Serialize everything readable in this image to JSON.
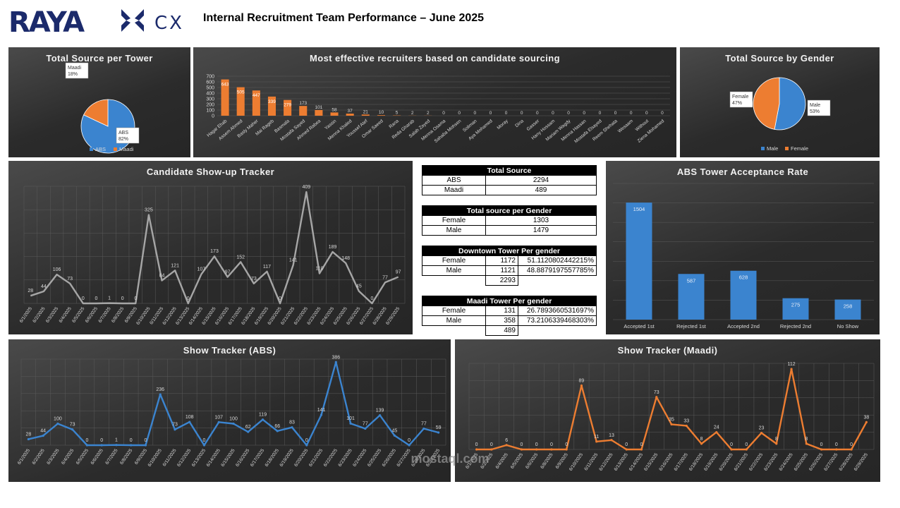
{
  "header": {
    "logo_text": "RAYA CX",
    "title": "Internal Recruitment Team Performance – June 2025",
    "watermark": "mostaql.com"
  },
  "colors": {
    "blue": "#3b84cf",
    "orange": "#ed7d31",
    "gray_line": "#a6a6a6"
  },
  "tables": {
    "total_source": {
      "title": "Total Source",
      "rows": [
        [
          "ABS",
          "2294"
        ],
        [
          "Maadi",
          "489"
        ]
      ]
    },
    "gender": {
      "title": "Total source per Gender",
      "rows": [
        [
          "Female",
          "1303"
        ],
        [
          "Male",
          "1479"
        ]
      ]
    },
    "downtown": {
      "title": "Downtown Tower Per gender",
      "rows": [
        [
          "Female",
          "1172",
          "51.1120802442215%"
        ],
        [
          "Male",
          "1121",
          "48.8879197557785%"
        ]
      ],
      "total": "2293"
    },
    "maadi": {
      "title": "Maadi Tower Per gender",
      "rows": [
        [
          "Female",
          "131",
          "26.7893660531697%"
        ],
        [
          "Male",
          "358",
          "73.2106339468303%"
        ]
      ],
      "total": "489"
    }
  },
  "chart_data": [
    {
      "id": "tower-pie",
      "type": "pie",
      "title": "Total Source per Tower",
      "slices": [
        {
          "name": "ABS",
          "value": 82,
          "label": "82%",
          "color": "#3b84cf"
        },
        {
          "name": "Maadi",
          "value": 18,
          "label": "18%",
          "color": "#ed7d31"
        }
      ],
      "legend": "bottom"
    },
    {
      "id": "recruiters-bar",
      "type": "bar",
      "title": "Most effective recruiters based on candidate sourcing",
      "categories": [
        "Hagar Ehab",
        "Assem Ahmed",
        "Basly Maher",
        "Mai Rageb",
        "Basmala",
        "Mostafa Sayed",
        "Ahmed Rabea",
        "Yassin",
        "Menna Khaled",
        "Youssef Atef",
        "Omar Saeed",
        "Rana",
        "Reda Gharab",
        "Salah Zayed",
        "Menna Osama",
        "Sahaba Mohsen",
        "Soliman",
        "Aya Mohamed",
        "Moray",
        "Dina",
        "Gasser",
        "Hany Hossam",
        "Mariam Wagdy",
        "Menna Hassan",
        "Mostafa Elsayed",
        "Reem Shehata",
        "Wesaam",
        "Without",
        "Ziena Mohamed"
      ],
      "values": [
        643,
        505,
        447,
        339,
        279,
        173,
        101,
        58,
        37,
        21,
        10,
        5,
        2,
        2,
        0,
        0,
        0,
        0,
        0,
        0,
        0,
        0,
        0,
        0,
        0,
        0,
        0,
        0,
        0
      ],
      "yticks": [
        "0",
        "100",
        "200",
        "300",
        "400",
        "500",
        "600",
        "700"
      ],
      "ylim": [
        0,
        700
      ],
      "color": "#ed7d31"
    },
    {
      "id": "gender-pie",
      "type": "pie",
      "title": "Total Source by Gender",
      "slices": [
        {
          "name": "Male",
          "value": 53,
          "label": "53%",
          "color": "#3b84cf"
        },
        {
          "name": "Female",
          "value": 47,
          "label": "47%",
          "color": "#ed7d31"
        }
      ],
      "legend": "bottom"
    },
    {
      "id": "showup-line",
      "type": "line",
      "title": "Candidate Show-up Tracker",
      "x": [
        "6/1/2025",
        "6/2/2025",
        "6/3/2025",
        "6/4/2025",
        "6/5/2025",
        "6/6/2025",
        "6/7/2025",
        "6/8/2025",
        "6/9/2025",
        "6/10/2025",
        "6/11/2025",
        "6/12/2025",
        "6/13/2025",
        "6/14/2025",
        "6/15/2025",
        "6/16/2025",
        "6/17/2025",
        "6/18/2025",
        "6/19/2025",
        "6/20/2025",
        "6/21/2025",
        "6/22/2025",
        "6/23/2025",
        "6/24/2025",
        "6/25/2025",
        "6/26/2025",
        "6/27/2025",
        "6/28/2025",
        "6/29/2025"
      ],
      "values": [
        28,
        44,
        106,
        73,
        0,
        0,
        1,
        0,
        0,
        325,
        84,
        121,
        0,
        107,
        173,
        97,
        152,
        73,
        117,
        0,
        141,
        409,
        110,
        189,
        148,
        45,
        0,
        77,
        97
      ],
      "ylim": [
        0,
        430
      ],
      "color": "#a6a6a6"
    },
    {
      "id": "acceptance-bar",
      "type": "bar",
      "title": "ABS Tower Acceptance Rate",
      "categories": [
        "Accepted 1st",
        "Rejected 1st",
        "Accepted 2nd",
        "Rejected 2nd",
        "No Show"
      ],
      "values": [
        1504,
        587,
        628,
        275,
        258
      ],
      "ylim": [
        0,
        1750
      ],
      "color": "#3b84cf"
    },
    {
      "id": "abs-line",
      "type": "line",
      "title": "Show Tracker (ABS)",
      "x": [
        "6/1/2025",
        "6/2/2025",
        "6/3/2025",
        "6/4/2025",
        "6/5/2025",
        "6/6/2025",
        "6/7/2025",
        "6/8/2025",
        "6/9/2025",
        "6/10/2025",
        "6/11/2025",
        "6/12/2025",
        "6/13/2025",
        "6/14/2025",
        "6/15/2025",
        "6/16/2025",
        "6/17/2025",
        "6/18/2025",
        "6/19/2025",
        "6/20/2025",
        "6/21/2025",
        "6/22/2025",
        "6/23/2025",
        "6/24/2025",
        "6/25/2025",
        "6/26/2025",
        "6/27/2025",
        "6/28/2025",
        "6/29/2025"
      ],
      "values": [
        28,
        44,
        100,
        73,
        0,
        0,
        1,
        0,
        0,
        236,
        73,
        108,
        0,
        107,
        100,
        62,
        119,
        66,
        83,
        0,
        141,
        386,
        101,
        77,
        139,
        45,
        0,
        77,
        59
      ],
      "ylim": [
        0,
        400
      ],
      "color": "#3b84cf"
    },
    {
      "id": "maadi-line",
      "type": "line",
      "title": "Show Tracker (Maadi)",
      "x": [
        "6/1/2025",
        "6/2/2025",
        "6/4/2025",
        "6/5/2025",
        "6/6/2025",
        "6/8/2025",
        "6/9/2025",
        "6/10/2025",
        "6/11/2025",
        "6/12/2025",
        "6/13/2025",
        "6/14/2025",
        "6/15/2025",
        "6/16/2025",
        "6/17/2025",
        "6/18/2025",
        "6/19/2025",
        "6/20/2025",
        "6/21/2025",
        "6/22/2025",
        "6/23/2025",
        "6/24/2025",
        "6/25/2025",
        "6/26/2025",
        "6/27/2025",
        "6/28/2025",
        "6/29/2025"
      ],
      "values": [
        0,
        0,
        6,
        0,
        0,
        0,
        0,
        89,
        11,
        13,
        0,
        0,
        73,
        35,
        33,
        8,
        24,
        0,
        0,
        23,
        8,
        112,
        8,
        0,
        0,
        0,
        38
      ],
      "ylim": [
        0,
        120
      ],
      "color": "#ed7d31"
    }
  ]
}
